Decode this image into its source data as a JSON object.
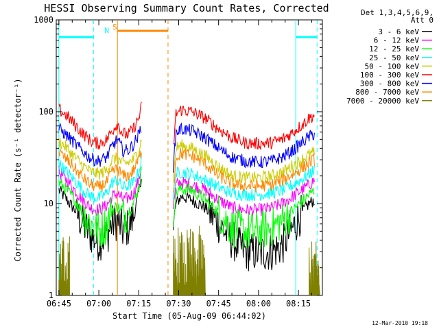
{
  "chart_data": {
    "type": "line",
    "title": "HESSI Observing Summary Count Rates, Corrected",
    "xlabel": "Start Time (05-Aug-09 06:44:02)",
    "ylabel": "Corrected Count Rate (s⁻¹ detector⁻¹)",
    "y_scale": "log",
    "ylim": [
      1,
      1000
    ],
    "yticks": [
      {
        "value": 1,
        "label": "1"
      },
      {
        "value": 10,
        "label": "10"
      },
      {
        "value": 100,
        "label": "100"
      },
      {
        "value": 1000,
        "label": "1000"
      }
    ],
    "xlim_minutes": [
      -1,
      99
    ],
    "xticks": [
      {
        "value": 0,
        "label": "06:45"
      },
      {
        "value": 15,
        "label": "07:00"
      },
      {
        "value": 30,
        "label": "07:15"
      },
      {
        "value": 45,
        "label": "07:30"
      },
      {
        "value": 60,
        "label": "07:45"
      },
      {
        "value": 75,
        "label": "08:00"
      },
      {
        "value": 90,
        "label": "08:15"
      }
    ],
    "legend": {
      "header": [
        "Det 1,3,4,5,6,9,",
        "Att 0"
      ],
      "placement": "right"
    },
    "series": [
      {
        "name": "3 - 6 keV",
        "color": "#000000",
        "segments": [
          {
            "x": [
              0,
              3,
              6,
              9,
              12,
              15,
              18,
              20,
              22,
              24,
              26,
              28,
              30,
              31
            ],
            "y": [
              14,
              11,
              8.5,
              6,
              4.5,
              3.8,
              4.5,
              6,
              6.5,
              5,
              5.5,
              7,
              13,
              20
            ]
          },
          {
            "x": [
              43,
              44,
              46,
              50,
              55,
              60,
              65,
              70,
              75,
              80,
              84,
              88,
              92,
              94,
              96
            ],
            "y": [
              5,
              10,
              12,
              11,
              9,
              6,
              4,
              3,
              2.9,
              3,
              3.5,
              5.5,
              8.5,
              10,
              11
            ]
          }
        ]
      },
      {
        "name": "6 - 12 keV",
        "color": "#ff00ff",
        "segments": [
          {
            "x": [
              0,
              3,
              6,
              9,
              12,
              15,
              18,
              20,
              22,
              24,
              26,
              28,
              30,
              31
            ],
            "y": [
              22,
              18,
              14,
              11,
              9,
              8.5,
              9.5,
              12,
              13,
              11,
              11.5,
              13,
              18,
              25
            ]
          },
          {
            "x": [
              43,
              44,
              46,
              50,
              55,
              60,
              65,
              70,
              75,
              80,
              84,
              88,
              92,
              94,
              96
            ],
            "y": [
              9,
              16,
              17,
              16,
              14,
              11,
              9,
              8.5,
              8.5,
              9,
              10,
              12,
              14.5,
              16,
              18
            ]
          }
        ]
      },
      {
        "name": "12 - 25 keV",
        "color": "#00ff00",
        "segments": [
          {
            "x": [
              0,
              3,
              6,
              9,
              12,
              15,
              18,
              20,
              22,
              24,
              26,
              28,
              30,
              31
            ],
            "y": [
              17,
              14,
              11,
              8,
              6,
              5,
              6,
              8.5,
              9.5,
              7.5,
              8,
              10,
              15,
              22
            ]
          },
          {
            "x": [
              43,
              44,
              46,
              50,
              55,
              60,
              65,
              70,
              75,
              80,
              84,
              88,
              92,
              94,
              96
            ],
            "y": [
              7,
              13,
              14.5,
              14,
              11,
              8,
              5.5,
              5,
              5,
              5.5,
              6.5,
              8.5,
              11,
              12.5,
              14
            ]
          }
        ]
      },
      {
        "name": "25 - 50 keV",
        "color": "#00ffff",
        "segments": [
          {
            "x": [
              0,
              3,
              6,
              9,
              12,
              15,
              18,
              20,
              22,
              24,
              26,
              28,
              30,
              31
            ],
            "y": [
              27,
              22,
              18,
              14,
              12,
              11.5,
              13,
              17,
              18,
              15,
              15.5,
              17,
              22,
              30
            ]
          },
          {
            "x": [
              43,
              44,
              46,
              50,
              55,
              60,
              65,
              70,
              75,
              80,
              84,
              88,
              92,
              94,
              96
            ],
            "y": [
              11,
              21,
              22,
              21,
              18,
              15,
              13,
              12.5,
              12.5,
              13,
              14,
              16,
              19,
              21,
              23
            ]
          }
        ]
      },
      {
        "name": "50 - 100 keV",
        "color": "#cccc00",
        "segments": [
          {
            "x": [
              0,
              3,
              6,
              9,
              12,
              15,
              18,
              20,
              22,
              24,
              26,
              28,
              30,
              31
            ],
            "y": [
              48,
              40,
              32,
              26,
              22,
              21,
              23,
              30,
              31,
              27,
              28,
              30,
              38,
              50
            ]
          },
          {
            "x": [
              43,
              44,
              46,
              50,
              55,
              60,
              65,
              70,
              75,
              80,
              84,
              88,
              92,
              94,
              96
            ],
            "y": [
              19,
              40,
              43,
              40,
              33,
              25,
              20,
              19,
              19,
              20,
              22,
              26,
              31,
              34,
              36
            ]
          }
        ]
      },
      {
        "name": "100 - 300 keV",
        "color": "#ff0000",
        "segments": [
          {
            "x": [
              0,
              3,
              6,
              9,
              12,
              15,
              18,
              20,
              22,
              24,
              26,
              28,
              30,
              31
            ],
            "y": [
              105,
              90,
              72,
              58,
              48,
              45,
              50,
              62,
              75,
              58,
              56,
              65,
              85,
              112
            ]
          },
          {
            "x": [
              43,
              44,
              46,
              50,
              55,
              60,
              65,
              70,
              75,
              80,
              84,
              88,
              92,
              94,
              96
            ],
            "y": [
              40,
              95,
              105,
              100,
              85,
              65,
              52,
              46,
              45,
              46,
              50,
              60,
              75,
              85,
              92
            ]
          }
        ]
      },
      {
        "name": "300 - 800 keV",
        "color": "#0000ff",
        "segments": [
          {
            "x": [
              0,
              3,
              6,
              9,
              12,
              15,
              18,
              20,
              22,
              24,
              26,
              28,
              30,
              31
            ],
            "y": [
              65,
              55,
              45,
              37,
              31,
              29,
              32,
              42,
              50,
              38,
              38,
              44,
              56,
              70
            ]
          },
          {
            "x": [
              43,
              44,
              46,
              50,
              55,
              60,
              65,
              70,
              75,
              80,
              84,
              88,
              92,
              94,
              96
            ],
            "y": [
              25,
              60,
              65,
              62,
              52,
              40,
              32,
              29,
              28,
              29,
              32,
              38,
              48,
              53,
              58
            ]
          }
        ]
      },
      {
        "name": "800 - 7000 keV",
        "color": "#ff8800",
        "segments": [
          {
            "x": [
              0,
              3,
              6,
              9,
              12,
              15,
              18,
              20,
              22,
              24,
              26,
              28,
              30,
              31
            ],
            "y": [
              36,
              30,
              24,
              19,
              16,
              15,
              17,
              22,
              24,
              20,
              20,
              23,
              30,
              38
            ]
          },
          {
            "x": [
              43,
              44,
              46,
              50,
              55,
              60,
              65,
              70,
              75,
              80,
              84,
              88,
              92,
              94,
              96
            ],
            "y": [
              14,
              32,
              35,
              33,
              27,
              20,
              16.5,
              15.5,
              15.5,
              16,
              18,
              21,
              25,
              28,
              30
            ]
          }
        ]
      },
      {
        "name": "7000 - 20000 keV",
        "color": "#808000",
        "segments": [
          {
            "x": [
              0,
              1,
              2,
              3,
              4
            ],
            "y": [
              2.3,
              1.8,
              2.3,
              1.6,
              2.1
            ]
          },
          {
            "x": [
              43,
              45,
              47,
              49,
              51,
              53,
              55
            ],
            "y": [
              2.2,
              2.6,
              2.0,
              2.6,
              2.2,
              2.6,
              2.0
            ]
          },
          {
            "x": [
              94,
              95,
              96,
              97,
              98
            ],
            "y": [
              2.1,
              1.8,
              2.3,
              1.7,
              2.0
            ]
          }
        ]
      }
    ],
    "annotations": {
      "cyan_solid_lines_x": [
        0,
        89
      ],
      "cyan_dashed_lines_x": [
        13,
        97
      ],
      "cyan_bars": [
        {
          "x_start": 0,
          "x_end": 13,
          "y": 650
        },
        {
          "x_start": 89,
          "x_end": 97,
          "y": 650
        }
      ],
      "orange_solid_line_x": 22,
      "orange_dashed_line_x": 41,
      "orange_bar": {
        "x_start": 22,
        "x_end": 41,
        "y": 760
      },
      "markers": [
        {
          "label": "N",
          "x": 18,
          "color": "#00ffff"
        },
        {
          "label": "S",
          "x": 21,
          "color": "#ff8800"
        }
      ]
    },
    "colors": {
      "cyan": "#00ffff",
      "orange": "#ff8800"
    }
  },
  "footer": {
    "timestamp": "12-Mar-2010 19:18"
  }
}
